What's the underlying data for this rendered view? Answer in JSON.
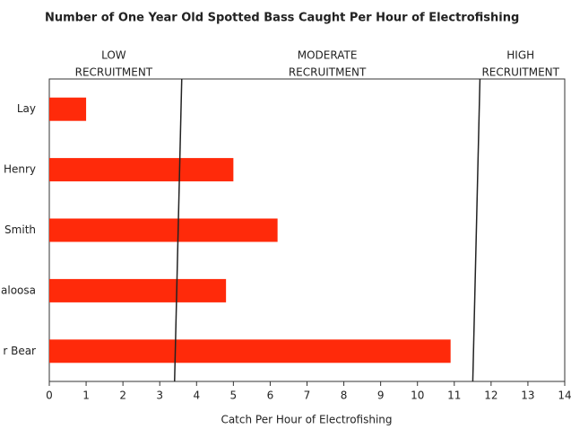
{
  "chart_data": {
    "type": "barh",
    "title": "Number of One Year Old Spotted Bass Caught Per Hour of Electrofishing",
    "x_label": "Catch Per Hour of Electrofishing",
    "categories": [
      "Lay",
      "Henry",
      "Smith",
      "aloosa",
      "r Bear"
    ],
    "values": [
      1,
      5,
      6.2,
      4.8,
      10.9
    ],
    "color": "#ff2a0a",
    "xlim": [
      0,
      14
    ],
    "xticks": [
      0,
      1,
      2,
      3,
      4,
      5,
      6,
      7,
      8,
      9,
      10,
      11,
      12,
      13,
      14
    ],
    "thresholds": [
      3.5,
      11.6
    ],
    "zones": [
      {
        "lines": [
          "LOW",
          "RECRUITMENT"
        ]
      },
      {
        "lines": [
          "MODERATE",
          "RECRUITMENT"
        ]
      },
      {
        "lines": [
          "HIGH",
          "RECRUITMENT"
        ]
      }
    ]
  }
}
